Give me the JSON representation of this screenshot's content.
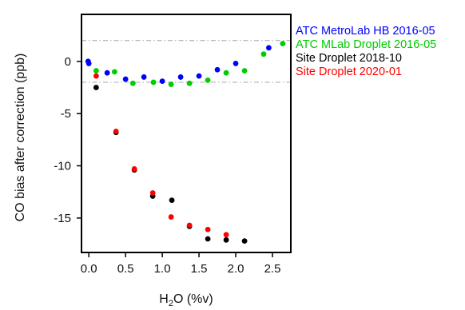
{
  "chart_data": {
    "type": "scatter",
    "xlabel": {
      "main": "H",
      "sub": "2",
      "rest": "O (%v)"
    },
    "ylabel": "CO bias after correction (ppb)",
    "xlim": [
      -0.1,
      2.75
    ],
    "ylim": [
      -18.3,
      4.5
    ],
    "xticks": [
      0.0,
      0.5,
      1.0,
      1.5,
      2.0,
      2.5
    ],
    "xtick_labels": [
      "0.0",
      "0.5",
      "1.0",
      "1.5",
      "2.0",
      "2.5"
    ],
    "yticks": [
      0,
      -5,
      -10,
      -15
    ],
    "ytick_labels": [
      "0",
      "-5",
      "-10",
      "-15"
    ],
    "reference_lines": [
      2,
      -2
    ],
    "grid": false,
    "legend_position": "right, outside plot",
    "series": [
      {
        "name": "ATC MetroLab HB 2016-05",
        "color": "#0000ff",
        "points": [
          [
            -0.01,
            0.0
          ],
          [
            0.0,
            -0.2
          ],
          [
            0.25,
            -1.1
          ],
          [
            0.5,
            -1.7
          ],
          [
            0.75,
            -1.5
          ],
          [
            1.0,
            -1.9
          ],
          [
            1.25,
            -1.5
          ],
          [
            1.5,
            -1.4
          ],
          [
            1.75,
            -0.8
          ],
          [
            2.0,
            -0.2
          ],
          [
            2.45,
            1.3
          ]
        ]
      },
      {
        "name": "ATC MLab Droplet 2016-05",
        "color": "#00cc00",
        "points": [
          [
            0.1,
            -0.9
          ],
          [
            0.35,
            -1.0
          ],
          [
            0.6,
            -2.1
          ],
          [
            0.88,
            -2.0
          ],
          [
            1.12,
            -2.2
          ],
          [
            1.37,
            -2.1
          ],
          [
            1.62,
            -1.8
          ],
          [
            1.87,
            -1.1
          ],
          [
            2.12,
            -0.9
          ],
          [
            2.38,
            0.7
          ],
          [
            2.64,
            1.7
          ]
        ]
      },
      {
        "name": "Site Droplet 2018-10",
        "color": "#000000",
        "points": [
          [
            0.1,
            -2.5
          ],
          [
            0.37,
            -6.8
          ],
          [
            0.62,
            -10.4
          ],
          [
            0.87,
            -12.9
          ],
          [
            1.13,
            -13.3
          ],
          [
            1.37,
            -15.8
          ],
          [
            1.62,
            -17.0
          ],
          [
            1.87,
            -17.1
          ],
          [
            2.12,
            -17.2
          ]
        ]
      },
      {
        "name": "Site Droplet 2020-01",
        "color": "#ff0000",
        "points": [
          [
            0.1,
            -1.4
          ],
          [
            0.37,
            -6.7
          ],
          [
            0.62,
            -10.3
          ],
          [
            0.87,
            -12.6
          ],
          [
            1.12,
            -14.9
          ],
          [
            1.37,
            -15.7
          ],
          [
            1.62,
            -16.1
          ],
          [
            1.87,
            -16.6
          ]
        ]
      }
    ]
  }
}
